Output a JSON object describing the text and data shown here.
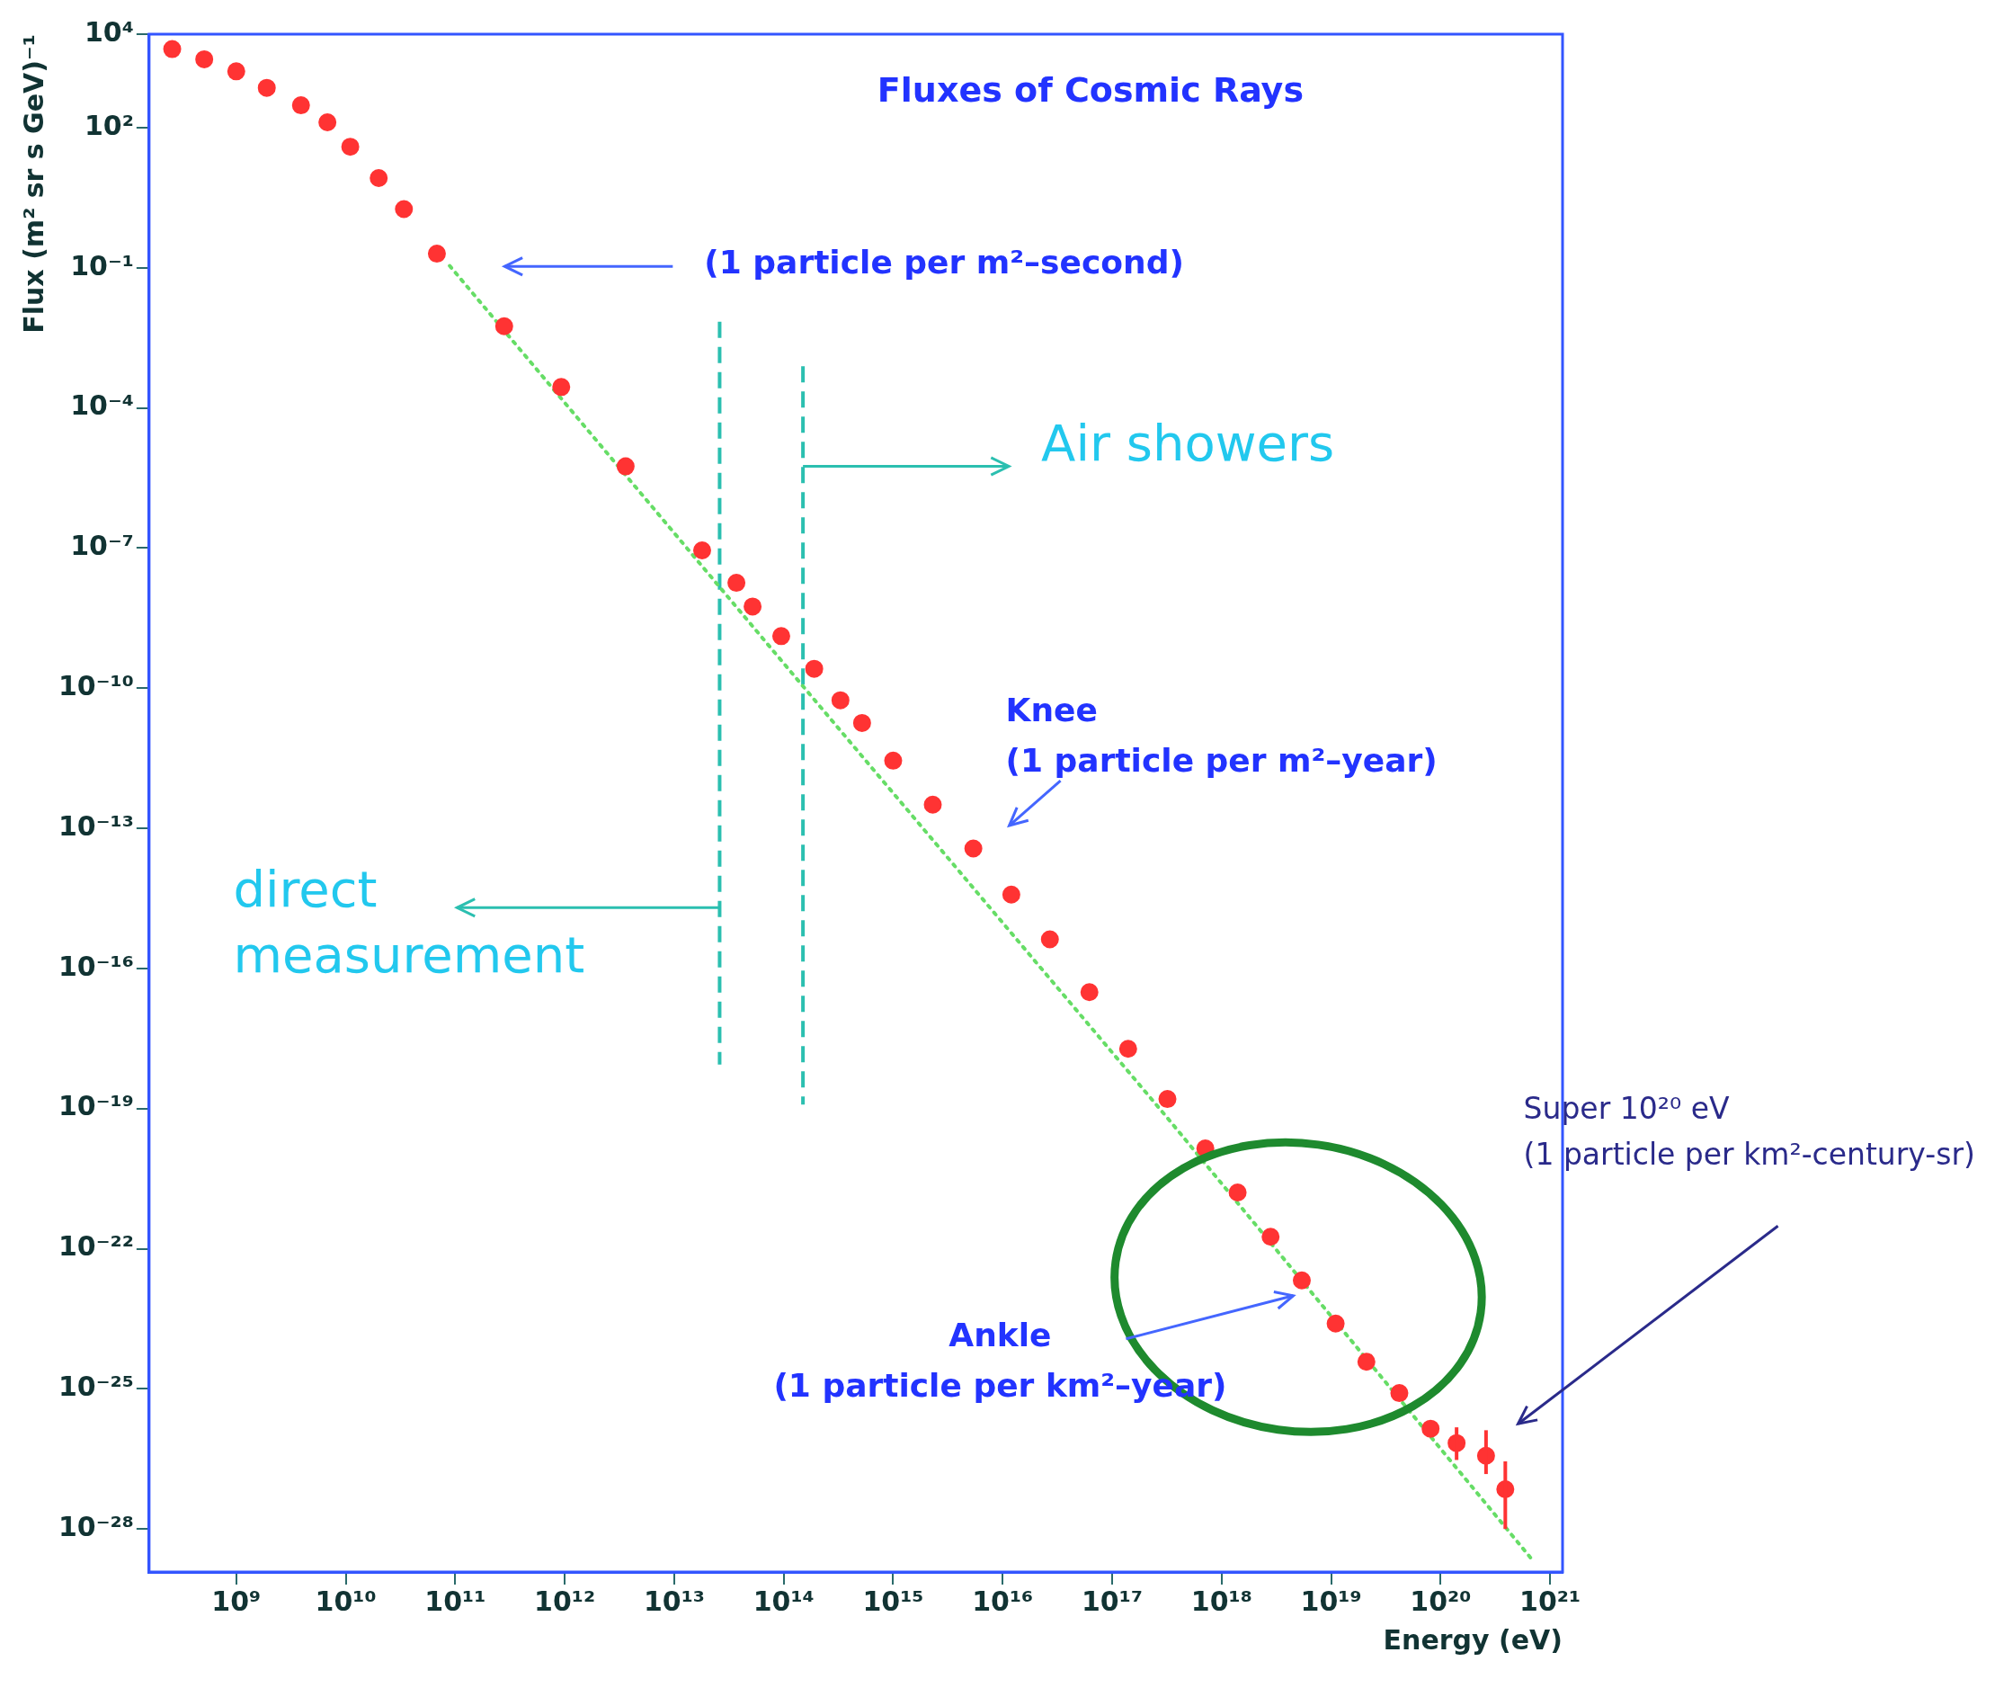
{
  "chart_data": {
    "type": "scatter",
    "title": "Fluxes of Cosmic Rays",
    "xlabel": "Energy (eV)",
    "ylabel": "Flux (m² sr s GeV)⁻¹",
    "log": "xy",
    "grid": false,
    "legend": false,
    "marker": "circle",
    "xlim": [
      160000000.0,
      1.3e+21
    ],
    "ylim": [
      1.2e-29,
      10000.0
    ],
    "xticks": [
      {
        "value": 1000000000.0,
        "label": "10⁹"
      },
      {
        "value": 10000000000.0,
        "label": "10¹⁰"
      },
      {
        "value": 100000000000.0,
        "label": "10¹¹"
      },
      {
        "value": 1000000000000.0,
        "label": "10¹²"
      },
      {
        "value": 10000000000000.0,
        "label": "10¹³"
      },
      {
        "value": 100000000000000.0,
        "label": "10¹⁴"
      },
      {
        "value": 1000000000000000.0,
        "label": "10¹⁵"
      },
      {
        "value": 1e+16,
        "label": "10¹⁶"
      },
      {
        "value": 1e+17,
        "label": "10¹⁷"
      },
      {
        "value": 1e+18,
        "label": "10¹⁸"
      },
      {
        "value": 1e+19,
        "label": "10¹⁹"
      },
      {
        "value": 1e+20,
        "label": "10²⁰"
      },
      {
        "value": 1e+21,
        "label": "10²¹"
      }
    ],
    "yticks": [
      {
        "value": 10000.0,
        "label": "10⁴"
      },
      {
        "value": 100.0,
        "label": "10²"
      },
      {
        "value": 0.1,
        "label": "10⁻¹"
      },
      {
        "value": 0.0001,
        "label": "10⁻⁴"
      },
      {
        "value": 1e-07,
        "label": "10⁻⁷"
      },
      {
        "value": 1e-10,
        "label": "10⁻¹⁰"
      },
      {
        "value": 1e-13,
        "label": "10⁻¹³"
      },
      {
        "value": 1e-16,
        "label": "10⁻¹⁶"
      },
      {
        "value": 1e-19,
        "label": "10⁻¹⁹"
      },
      {
        "value": 1e-22,
        "label": "10⁻²²"
      },
      {
        "value": 1e-25,
        "label": "10⁻²⁵"
      },
      {
        "value": 1e-28,
        "label": "10⁻²⁸"
      }
    ],
    "series": [
      {
        "color": "#ff3333",
        "x": [
          260000000.0,
          510000000.0,
          1000000000.0,
          1900000000.0,
          3900000000.0,
          6800000000.0,
          11000000000.0,
          20000000000.0,
          34000000000.0,
          68000000000.0,
          280000000000.0,
          930000000000.0,
          3600000000000.0,
          18000000000000.0,
          37000000000000.0,
          52000000000000.0,
          95000000000000.0,
          190000000000000.0,
          330000000000000.0,
          520000000000000.0,
          1000000000000000.0,
          2300000000000000.0,
          5400000000000000.0,
          1.2e+16,
          2.7e+16,
          6.2e+16,
          1.4e+17,
          3.2e+17,
          7.1e+17,
          1.4e+18,
          2.8e+18,
          5.4e+18,
          1.1e+19,
          2.1e+19,
          4.2e+19,
          8.1e+19,
          1.4e+20,
          2.6e+20,
          3.9e+20
        ],
        "values": [
          4800.0,
          2900.0,
          1600.0,
          710,
          300,
          130,
          39,
          8.3,
          1.8,
          0.2,
          0.0056,
          0.00028,
          5.6e-06,
          8.9e-08,
          1.8e-08,
          5.6e-09,
          1.3e-09,
          2.6e-10,
          5.5e-11,
          1.8e-11,
          2.8e-12,
          3.2e-13,
          3.7e-14,
          3.8e-15,
          4.2e-16,
          3.1e-17,
          1.9e-18,
          1.6e-19,
          1.4e-20,
          1.6e-21,
          1.8e-22,
          2.1e-23,
          2.5e-24,
          3.8e-25,
          8.1e-26,
          1.4e-26,
          6.9e-27,
          3.7e-27,
          7.1e-28
        ],
        "errors": [
          null,
          null,
          null,
          null,
          null,
          null,
          null,
          null,
          null,
          null,
          null,
          null,
          null,
          null,
          null,
          null,
          null,
          null,
          null,
          null,
          null,
          null,
          null,
          null,
          null,
          null,
          null,
          null,
          null,
          null,
          null,
          null,
          null,
          null,
          null,
          null,
          [
            3e-27,
            1.5e-26
          ],
          [
            1.5e-27,
            1.3e-26
          ],
          [
            1e-28,
            2.8e-27
          ]
        ]
      },
      {
        "type": "line",
        "color": "#66dd66",
        "line_style": "dotted",
        "marker": "none",
        "x": [
          89000000000.0,
          150000000000000.0,
          3.2e+17,
          7.1e+20
        ],
        "values": [
          0.11,
          1.1e-10,
          6.3e-20,
          2e-29
        ]
      }
    ],
    "ref_lines": [
      {
        "axis": "x",
        "value": 26000000000000.0,
        "label": "direct measurement",
        "color": "#2bbfb0",
        "line_style": "dashed"
      },
      {
        "axis": "x",
        "value": 150000000000000.0,
        "label": "Air showers",
        "color": "#2bbfb0",
        "line_style": "dashed"
      }
    ],
    "annotations": [
      "(1 particle per m²–second)",
      "Knee\n(1 particle per m²–year)",
      "Ankle\n(1 particle per km²–year)",
      "Super 10²⁰ eV\n(1 particle per km²-century-sr)"
    ]
  }
}
